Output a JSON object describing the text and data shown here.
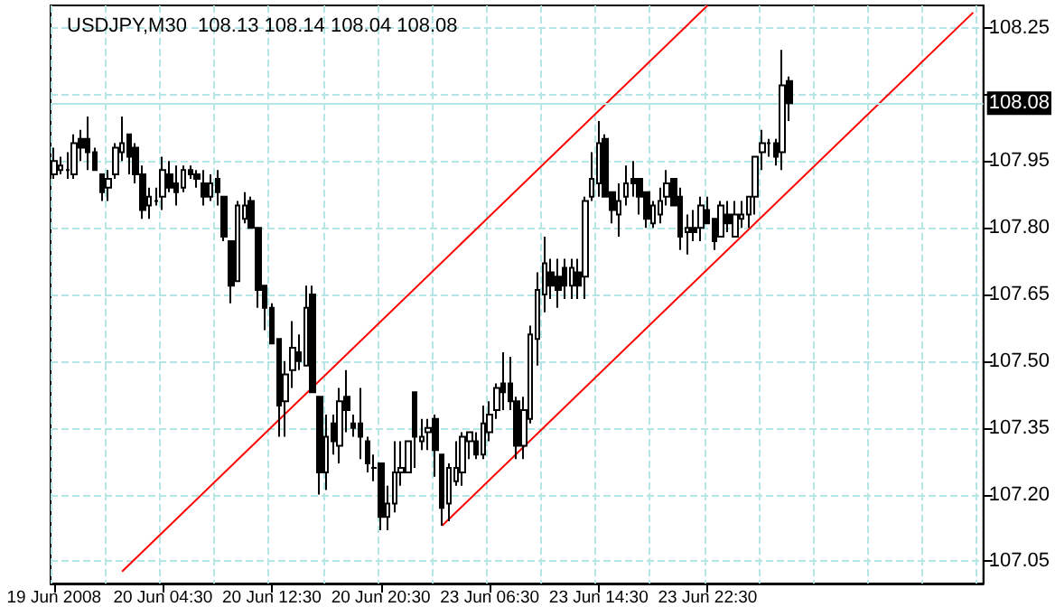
{
  "chart_data": {
    "type": "candlestick",
    "title": "USDJPY,M30  108.13 108.14 108.04 108.08",
    "color": "#000000",
    "categories": [
      "19 Jun 2008",
      null,
      null,
      null,
      null,
      null,
      null,
      null,
      null,
      null,
      null,
      null,
      null,
      null,
      null,
      null,
      "20 Jun 04:30",
      null,
      null,
      null,
      null,
      null,
      null,
      null,
      null,
      null,
      null,
      null,
      null,
      null,
      null,
      null,
      "20 Jun 12:30",
      null,
      null,
      null,
      null,
      null,
      null,
      null,
      null,
      null,
      null,
      null,
      null,
      null,
      null,
      null,
      "20 Jun 20:30",
      null,
      null,
      null,
      null,
      null,
      null,
      null,
      null,
      null,
      null,
      null,
      null,
      null,
      null,
      null,
      "23 Jun 06:30",
      null,
      null,
      null,
      null,
      null,
      null,
      null,
      null,
      null,
      null,
      null,
      null,
      null,
      null,
      null,
      "23 Jun 14:30",
      null,
      null,
      null,
      null,
      null,
      null,
      null,
      null,
      null,
      null,
      null,
      null,
      null,
      null,
      null,
      "23 Jun 22:30",
      null,
      null,
      null,
      null,
      null,
      null,
      null,
      null,
      null,
      null,
      null,
      null,
      null,
      null,
      null,
      null,
      null,
      null,
      null,
      null,
      null,
      null,
      null,
      null,
      null,
      null,
      null,
      null,
      null,
      null,
      null,
      null,
      null,
      null,
      null,
      null,
      null,
      null,
      null,
      null
    ],
    "ohlc": [
      [
        107.92,
        107.98,
        107.91,
        107.95
      ],
      [
        107.93,
        107.96,
        107.92,
        107.94
      ],
      [
        107.93,
        107.97,
        107.91,
        107.93
      ],
      [
        107.92,
        108.01,
        107.91,
        107.99
      ],
      [
        108.0,
        108.02,
        107.95,
        107.98
      ],
      [
        108.0,
        108.05,
        107.93,
        107.97
      ],
      [
        107.97,
        107.98,
        107.93,
        107.93
      ],
      [
        107.92,
        107.92,
        107.86,
        107.88
      ],
      [
        107.89,
        107.93,
        107.86,
        107.91
      ],
      [
        107.92,
        107.99,
        107.91,
        107.98
      ],
      [
        107.97,
        108.05,
        107.95,
        107.99
      ],
      [
        108.01,
        108.01,
        107.92,
        107.96
      ],
      [
        107.98,
        107.99,
        107.9,
        107.92
      ],
      [
        107.92,
        107.94,
        107.82,
        107.84
      ],
      [
        107.85,
        107.89,
        107.82,
        107.87
      ],
      [
        107.86,
        107.89,
        107.85,
        107.86
      ],
      [
        107.87,
        107.96,
        107.84,
        107.93
      ],
      [
        107.92,
        107.95,
        107.88,
        107.89
      ],
      [
        107.9,
        107.94,
        107.85,
        107.88
      ],
      [
        107.89,
        107.94,
        107.88,
        107.93
      ],
      [
        107.93,
        107.94,
        107.91,
        107.92
      ],
      [
        107.92,
        107.93,
        107.89,
        107.91
      ],
      [
        107.9,
        107.93,
        107.85,
        107.87
      ],
      [
        107.87,
        107.92,
        107.86,
        107.9
      ],
      [
        107.91,
        107.93,
        107.85,
        107.88
      ],
      [
        107.87,
        107.87,
        107.77,
        107.78
      ],
      [
        107.77,
        107.77,
        107.63,
        107.67
      ],
      [
        107.68,
        107.86,
        107.68,
        107.85
      ],
      [
        107.82,
        107.88,
        107.81,
        107.85
      ],
      [
        107.86,
        107.87,
        107.8,
        107.8
      ],
      [
        107.8,
        107.8,
        107.62,
        107.66
      ],
      [
        107.67,
        107.67,
        107.57,
        107.62
      ],
      [
        107.62,
        107.63,
        107.54,
        107.54
      ],
      [
        107.55,
        107.55,
        107.33,
        107.4
      ],
      [
        107.41,
        107.5,
        107.33,
        107.47
      ],
      [
        107.48,
        107.59,
        107.44,
        107.53
      ],
      [
        107.52,
        107.56,
        107.48,
        107.5
      ],
      [
        107.49,
        107.67,
        107.49,
        107.62
      ],
      [
        107.65,
        107.67,
        107.43,
        107.43
      ],
      [
        107.42,
        107.42,
        107.2,
        107.25
      ],
      [
        107.25,
        107.38,
        107.21,
        107.33
      ],
      [
        107.36,
        107.38,
        107.29,
        107.32
      ],
      [
        107.31,
        107.44,
        107.27,
        107.41
      ],
      [
        107.42,
        107.48,
        107.34,
        107.39
      ],
      [
        107.36,
        107.38,
        107.33,
        107.35
      ],
      [
        107.36,
        107.44,
        107.28,
        107.33
      ],
      [
        107.32,
        107.33,
        107.25,
        107.27
      ],
      [
        107.26,
        107.29,
        107.23,
        107.26
      ],
      [
        107.27,
        107.27,
        107.12,
        107.15
      ],
      [
        107.15,
        107.22,
        107.12,
        107.18
      ],
      [
        107.18,
        107.32,
        107.16,
        107.25
      ],
      [
        107.25,
        107.32,
        107.22,
        107.26
      ],
      [
        107.25,
        107.32,
        107.25,
        107.32
      ],
      [
        107.43,
        107.43,
        107.26,
        107.33
      ],
      [
        107.32,
        107.37,
        107.3,
        107.33
      ],
      [
        107.34,
        107.37,
        107.3,
        107.35
      ],
      [
        107.37,
        107.38,
        107.24,
        107.3
      ],
      [
        107.29,
        107.29,
        107.13,
        107.17
      ],
      [
        107.18,
        107.27,
        107.14,
        107.26
      ],
      [
        107.23,
        107.32,
        107.22,
        107.26
      ],
      [
        107.25,
        107.34,
        107.22,
        107.33
      ],
      [
        107.32,
        107.34,
        107.28,
        107.34
      ],
      [
        107.32,
        107.34,
        107.28,
        107.29
      ],
      [
        107.29,
        107.4,
        107.28,
        107.36
      ],
      [
        107.34,
        107.41,
        107.32,
        107.38
      ],
      [
        107.39,
        107.45,
        107.37,
        107.44
      ],
      [
        107.45,
        107.52,
        107.39,
        107.43
      ],
      [
        107.45,
        107.51,
        107.39,
        107.41
      ],
      [
        107.41,
        107.42,
        107.28,
        107.31
      ],
      [
        107.31,
        107.42,
        107.28,
        107.39
      ],
      [
        107.37,
        107.58,
        107.36,
        107.56
      ],
      [
        107.55,
        107.7,
        107.49,
        107.66
      ],
      [
        107.65,
        107.78,
        107.61,
        107.72
      ],
      [
        107.7,
        107.73,
        107.64,
        107.67
      ],
      [
        107.69,
        107.73,
        107.62,
        107.66
      ],
      [
        107.71,
        107.73,
        107.64,
        107.67
      ],
      [
        107.67,
        107.73,
        107.64,
        107.71
      ],
      [
        107.7,
        107.73,
        107.64,
        107.67
      ],
      [
        107.69,
        107.87,
        107.64,
        107.86
      ],
      [
        107.87,
        107.97,
        107.86,
        107.91
      ],
      [
        107.9,
        108.04,
        107.87,
        107.99
      ],
      [
        108.0,
        108.01,
        107.87,
        107.87
      ],
      [
        107.88,
        107.88,
        107.81,
        107.84
      ],
      [
        107.83,
        107.9,
        107.78,
        107.86
      ],
      [
        107.87,
        107.94,
        107.85,
        107.9
      ],
      [
        107.91,
        107.95,
        107.87,
        107.9
      ],
      [
        107.91,
        107.91,
        107.83,
        107.87
      ],
      [
        107.88,
        107.88,
        107.8,
        107.82
      ],
      [
        107.81,
        107.86,
        107.8,
        107.85
      ],
      [
        107.83,
        107.89,
        107.81,
        107.86
      ],
      [
        107.87,
        107.93,
        107.85,
        107.9
      ],
      [
        107.91,
        107.91,
        107.85,
        107.85
      ],
      [
        107.87,
        107.89,
        107.75,
        107.78
      ],
      [
        107.79,
        107.83,
        107.74,
        107.8
      ],
      [
        107.8,
        107.84,
        107.77,
        107.79
      ],
      [
        107.8,
        107.87,
        107.77,
        107.85
      ],
      [
        107.84,
        107.87,
        107.81,
        107.81
      ],
      [
        107.82,
        107.82,
        107.75,
        107.77
      ],
      [
        107.78,
        107.86,
        107.78,
        107.85
      ],
      [
        107.83,
        107.86,
        107.79,
        107.81
      ],
      [
        107.78,
        107.86,
        107.78,
        107.83
      ],
      [
        107.82,
        107.86,
        107.8,
        107.83
      ],
      [
        107.83,
        107.87,
        107.8,
        107.87
      ],
      [
        107.87,
        107.96,
        107.83,
        107.96
      ],
      [
        107.97,
        108.02,
        107.93,
        107.99
      ],
      [
        107.99,
        108.0,
        107.96,
        107.99
      ],
      [
        107.99,
        108.0,
        107.94,
        107.96
      ],
      [
        107.97,
        108.2,
        107.93,
        108.12
      ],
      [
        108.13,
        108.14,
        108.04,
        108.08
      ],
      null,
      null,
      null,
      null,
      null,
      null,
      null,
      null,
      null,
      null,
      null,
      null,
      null,
      null,
      null,
      null,
      null,
      null,
      null,
      null,
      null,
      null,
      null,
      null,
      null,
      null,
      null,
      null
    ],
    "series": [
      {
        "type": "line",
        "color": "#ff0000",
        "values": [
          null,
          null,
          null,
          null,
          null,
          null,
          null,
          null,
          null,
          null,
          107.027,
          null,
          null,
          null,
          null,
          null,
          null,
          null,
          null,
          null,
          null,
          null,
          null,
          null,
          null,
          null,
          null,
          null,
          null,
          null,
          null,
          null,
          null,
          null,
          null,
          null,
          null,
          null,
          null,
          null,
          null,
          null,
          null,
          null,
          null,
          null,
          null,
          null,
          null,
          null,
          null,
          null,
          null,
          null,
          null,
          null,
          null,
          null,
          null,
          null,
          null,
          null,
          null,
          null,
          null,
          null,
          null,
          null,
          null,
          null,
          null,
          null,
          null,
          null,
          null,
          null,
          null,
          null,
          null,
          null,
          null,
          null,
          null,
          null,
          null,
          null,
          null,
          null,
          null,
          null,
          null,
          null,
          null,
          null,
          null,
          null,
          108.3,
          null,
          null,
          null,
          null,
          null,
          null,
          null,
          null,
          null,
          null,
          null,
          null,
          null,
          null,
          null,
          null,
          null,
          null,
          null,
          null,
          null,
          null,
          null,
          null,
          null,
          null,
          null,
          null,
          null,
          null,
          null,
          null,
          null,
          null,
          null,
          null,
          null,
          null,
          null,
          null
        ]
      },
      {
        "type": "line",
        "color": "#ff0000",
        "values": [
          null,
          null,
          null,
          null,
          null,
          null,
          null,
          null,
          null,
          null,
          null,
          null,
          null,
          null,
          null,
          null,
          null,
          null,
          null,
          null,
          null,
          null,
          null,
          null,
          null,
          null,
          null,
          null,
          null,
          null,
          null,
          null,
          null,
          null,
          null,
          null,
          null,
          null,
          null,
          null,
          null,
          null,
          null,
          null,
          null,
          null,
          null,
          null,
          null,
          null,
          null,
          null,
          null,
          null,
          null,
          null,
          null,
          107.13,
          null,
          null,
          null,
          null,
          null,
          null,
          null,
          null,
          null,
          null,
          null,
          null,
          null,
          null,
          null,
          null,
          null,
          null,
          null,
          null,
          null,
          null,
          null,
          null,
          null,
          null,
          null,
          null,
          null,
          null,
          null,
          null,
          null,
          null,
          null,
          null,
          null,
          null,
          null,
          null,
          null,
          null,
          null,
          null,
          null,
          null,
          null,
          null,
          null,
          null,
          null,
          null,
          null,
          null,
          null,
          null,
          null,
          null,
          null,
          null,
          null,
          null,
          null,
          null,
          null,
          null,
          null,
          null,
          null,
          null,
          null,
          null,
          null,
          null,
          null,
          null,
          null,
          108.284,
          null
        ]
      }
    ],
    "ylim": [
      107.0,
      108.3
    ],
    "yticks": [
      107.05,
      {
        "value": 107.2,
        "label": "107.20"
      },
      107.35,
      {
        "value": 107.5,
        "label": "107.50"
      },
      107.65,
      {
        "value": 107.8,
        "label": "107.80"
      },
      107.95,
      {
        "value": 108.1,
        "label": null
      },
      108.25
    ],
    "ref_lines": [
      {
        "axis": "y",
        "value": 108.08,
        "label": "108.08",
        "color": "#b4e6e6"
      }
    ],
    "grid": true
  }
}
